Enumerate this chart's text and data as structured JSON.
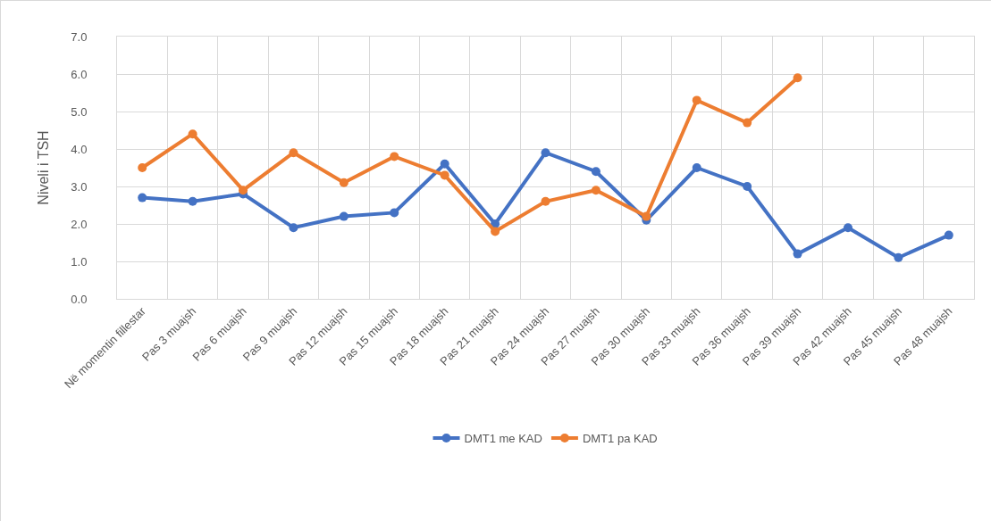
{
  "chart_data": {
    "type": "line",
    "ylabel": "Niveli i TSH",
    "categories": [
      "Në momentin fillestar",
      "Pas 3 muajsh",
      "Pas 6 muajsh",
      "Pas 9 muajsh",
      "Pas 12 muajsh",
      "Pas 15 muajsh",
      "Pas 18 muajsh",
      "Pas 21 muajsh",
      "Pas 24 muajsh",
      "Pas 27 muajsh",
      "Pas 30 muajsh",
      "Pas 33 muajsh",
      "Pas 36 muajsh",
      "Pas 39 muajsh",
      "Pas 42 muajsh",
      "Pas 45 muajsh",
      "Pas 48 muajsh"
    ],
    "series": [
      {
        "name": "DMT1 me KAD",
        "color": "#4472c4",
        "values": [
          2.7,
          2.6,
          2.8,
          1.9,
          2.2,
          2.3,
          3.6,
          2.0,
          3.9,
          3.4,
          2.1,
          3.5,
          3.0,
          1.2,
          1.9,
          1.1,
          1.7
        ]
      },
      {
        "name": "DMT1 pa KAD",
        "color": "#ed7d31",
        "values": [
          3.5,
          4.4,
          2.9,
          3.9,
          3.1,
          3.8,
          3.3,
          1.8,
          2.6,
          2.9,
          2.2,
          5.3,
          4.7,
          5.9,
          null,
          null,
          null
        ]
      }
    ],
    "ylim": [
      0,
      7
    ],
    "yticks": [
      {
        "value": 0,
        "label": "0.0"
      },
      {
        "value": 1,
        "label": "1.0"
      },
      {
        "value": 2,
        "label": "2.0"
      },
      {
        "value": 3,
        "label": "3.0"
      },
      {
        "value": 4,
        "label": "4.0"
      },
      {
        "value": 5,
        "label": "5.0"
      },
      {
        "value": 6,
        "label": "6.0"
      },
      {
        "value": 7,
        "label": "7.0"
      }
    ],
    "grid": true,
    "legend": "bottom",
    "marker": "circle",
    "line_style": "solid"
  }
}
